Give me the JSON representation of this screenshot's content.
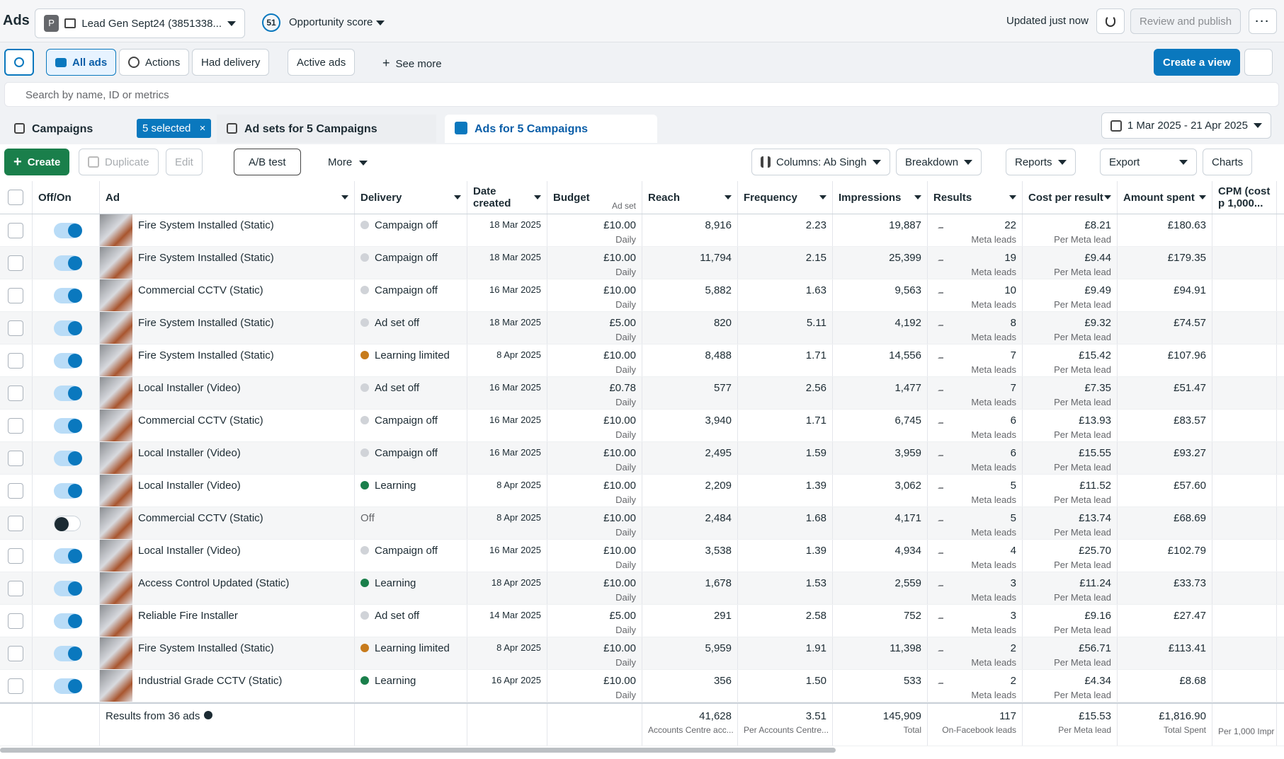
{
  "header": {
    "app": "Ads",
    "account_initial": "P",
    "campaign": "Lead Gen Sept24 (3851338...",
    "score": "51",
    "score_label": "Opportunity score",
    "updated": "Updated just now",
    "publish": "Review and publish"
  },
  "filters": {
    "items": [
      "All ads",
      "Actions",
      "Had delivery",
      "Active ads",
      "See more"
    ],
    "create_view": "Create a view",
    "search_placeholder": "Search by name, ID or metrics"
  },
  "tabs": {
    "campaigns": "Campaigns",
    "selected": "5 selected",
    "ad_sets": "Ad sets for 5 Campaigns",
    "ads": "Ads for 5 Campaigns",
    "date_range": "1 Mar 2025 - 21 Apr 2025"
  },
  "toolbar": {
    "create": "Create",
    "duplicate": "Duplicate",
    "edit": "Edit",
    "ab_test": "A/B test",
    "more": "More",
    "columns": "Columns: Ab Singh",
    "breakdown": "Breakdown",
    "reports": "Reports",
    "export": "Export",
    "charts": "Charts"
  },
  "table": {
    "columns": [
      "Off/On",
      "Ad",
      "Delivery",
      "Date created",
      "Budget",
      "Reach",
      "Frequency",
      "Impressions",
      "Results",
      "Cost per result",
      "Amount spent",
      "CPM (cost p 1,000..."
    ],
    "budget_note": "Ad set",
    "rows": [
      {
        "on": true,
        "ad": "Fire System Installed (Static)",
        "delivery": "Campaign off",
        "dot": "#d0d3d8",
        "date": "18 Mar 2025",
        "budget": "£10.00",
        "budget_period": "Daily",
        "reach": "8,916",
        "frequency": "2.23",
        "impressions": "19,887",
        "results": "22",
        "result_type": "Meta leads",
        "cost_per_result": "£8.21",
        "cost_type": "Per Meta lead",
        "amount_spent": "£180.63"
      },
      {
        "on": true,
        "ad": "Fire System Installed (Static)",
        "delivery": "Campaign off",
        "dot": "#d0d3d8",
        "date": "18 Mar 2025",
        "budget": "£10.00",
        "budget_period": "Daily",
        "reach": "11,794",
        "frequency": "2.15",
        "impressions": "25,399",
        "results": "19",
        "result_type": "Meta leads",
        "cost_per_result": "£9.44",
        "cost_type": "Per Meta lead",
        "amount_spent": "£179.35"
      },
      {
        "on": true,
        "ad": "Commercial CCTV (Static)",
        "delivery": "Campaign off",
        "dot": "#d0d3d8",
        "date": "16 Mar 2025",
        "budget": "£10.00",
        "budget_period": "Daily",
        "reach": "5,882",
        "frequency": "1.63",
        "impressions": "9,563",
        "results": "10",
        "result_type": "Meta leads",
        "cost_per_result": "£9.49",
        "cost_type": "Per Meta lead",
        "amount_spent": "£94.91"
      },
      {
        "on": true,
        "ad": "Fire System Installed (Static)",
        "delivery": "Ad set off",
        "dot": "#d0d3d8",
        "date": "18 Mar 2025",
        "budget": "£5.00",
        "budget_period": "Daily",
        "reach": "820",
        "frequency": "5.11",
        "impressions": "4,192",
        "results": "8",
        "result_type": "Meta leads",
        "cost_per_result": "£9.32",
        "cost_type": "Per Meta lead",
        "amount_spent": "£74.57"
      },
      {
        "on": true,
        "ad": "Fire System Installed (Static)",
        "delivery": "Learning limited",
        "dot": "#c77b1c",
        "date": "8 Apr 2025",
        "budget": "£10.00",
        "budget_period": "Daily",
        "reach": "8,488",
        "frequency": "1.71",
        "impressions": "14,556",
        "results": "7",
        "result_type": "Meta leads",
        "cost_per_result": "£15.42",
        "cost_type": "Per Meta lead",
        "amount_spent": "£107.96"
      },
      {
        "on": true,
        "ad": "Local Installer (Video)",
        "delivery": "Ad set off",
        "dot": "#d0d3d8",
        "date": "16 Mar 2025",
        "budget": "£0.78",
        "budget_period": "Daily",
        "reach": "577",
        "frequency": "2.56",
        "impressions": "1,477",
        "results": "7",
        "result_type": "Meta leads",
        "cost_per_result": "£7.35",
        "cost_type": "Per Meta lead",
        "amount_spent": "£51.47"
      },
      {
        "on": true,
        "ad": "Commercial CCTV (Static)",
        "delivery": "Campaign off",
        "dot": "#d0d3d8",
        "date": "16 Mar 2025",
        "budget": "£10.00",
        "budget_period": "Daily",
        "reach": "3,940",
        "frequency": "1.71",
        "impressions": "6,745",
        "results": "6",
        "result_type": "Meta leads",
        "cost_per_result": "£13.93",
        "cost_type": "Per Meta lead",
        "amount_spent": "£83.57"
      },
      {
        "on": true,
        "ad": "Local Installer (Video)",
        "delivery": "Campaign off",
        "dot": "#d0d3d8",
        "date": "16 Mar 2025",
        "budget": "£10.00",
        "budget_period": "Daily",
        "reach": "2,495",
        "frequency": "1.59",
        "impressions": "3,959",
        "results": "6",
        "result_type": "Meta leads",
        "cost_per_result": "£15.55",
        "cost_type": "Per Meta lead",
        "amount_spent": "£93.27"
      },
      {
        "on": true,
        "ad": "Local Installer (Video)",
        "delivery": "Learning",
        "dot": "#1a7f4b",
        "date": "8 Apr 2025",
        "budget": "£10.00",
        "budget_period": "Daily",
        "reach": "2,209",
        "frequency": "1.39",
        "impressions": "3,062",
        "results": "5",
        "result_type": "Meta leads",
        "cost_per_result": "£11.52",
        "cost_type": "Per Meta lead",
        "amount_spent": "£57.60"
      },
      {
        "on": false,
        "ad": "Commercial CCTV (Static)",
        "delivery": "Off",
        "dot": null,
        "date": "8 Apr 2025",
        "budget": "£10.00",
        "budget_period": "Daily",
        "reach": "2,484",
        "frequency": "1.68",
        "impressions": "4,171",
        "results": "5",
        "result_type": "Meta leads",
        "cost_per_result": "£13.74",
        "cost_type": "Per Meta lead",
        "amount_spent": "£68.69"
      },
      {
        "on": true,
        "ad": "Local Installer (Video)",
        "delivery": "Campaign off",
        "dot": "#d0d3d8",
        "date": "16 Mar 2025",
        "budget": "£10.00",
        "budget_period": "Daily",
        "reach": "3,538",
        "frequency": "1.39",
        "impressions": "4,934",
        "results": "4",
        "result_type": "Meta leads",
        "cost_per_result": "£25.70",
        "cost_type": "Per Meta lead",
        "amount_spent": "£102.79"
      },
      {
        "on": true,
        "ad": "Access Control Updated (Static)",
        "delivery": "Learning",
        "dot": "#1a7f4b",
        "date": "18 Apr 2025",
        "budget": "£10.00",
        "budget_period": "Daily",
        "reach": "1,678",
        "frequency": "1.53",
        "impressions": "2,559",
        "results": "3",
        "result_type": "Meta leads",
        "cost_per_result": "£11.24",
        "cost_type": "Per Meta lead",
        "amount_spent": "£33.73"
      },
      {
        "on": true,
        "ad": "Reliable Fire Installer",
        "delivery": "Ad set off",
        "dot": "#d0d3d8",
        "date": "14 Mar 2025",
        "budget": "£5.00",
        "budget_period": "Daily",
        "reach": "291",
        "frequency": "2.58",
        "impressions": "752",
        "results": "3",
        "result_type": "Meta leads",
        "cost_per_result": "£9.16",
        "cost_type": "Per Meta lead",
        "amount_spent": "£27.47"
      },
      {
        "on": true,
        "ad": "Fire System Installed (Static)",
        "delivery": "Learning limited",
        "dot": "#c77b1c",
        "date": "8 Apr 2025",
        "budget": "£10.00",
        "budget_period": "Daily",
        "reach": "5,959",
        "frequency": "1.91",
        "impressions": "11,398",
        "results": "2",
        "result_type": "Meta leads",
        "cost_per_result": "£56.71",
        "cost_type": "Per Meta lead",
        "amount_spent": "£113.41"
      },
      {
        "on": true,
        "ad": "Industrial Grade CCTV (Static)",
        "delivery": "Learning",
        "dot": "#1a7f4b",
        "date": "16 Apr 2025",
        "budget": "£10.00",
        "budget_period": "Daily",
        "reach": "356",
        "frequency": "1.50",
        "impressions": "533",
        "results": "2",
        "result_type": "Meta leads",
        "cost_per_result": "£4.34",
        "cost_type": "Per Meta lead",
        "amount_spent": "£8.68"
      }
    ],
    "summary": {
      "label": "Results from 36 ads",
      "reach": "41,628",
      "reach_note": "Accounts Centre acc...",
      "frequency": "3.51",
      "frequency_note": "Per Accounts Centre...",
      "impressions": "145,909",
      "impressions_note": "Total",
      "results": "117",
      "results_note": "On-Facebook leads",
      "cost_per_result": "£15.53",
      "cost_note": "Per Meta lead",
      "amount_spent": "£1,816.90",
      "amount_note": "Total Spent",
      "cpm_note": "Per 1,000 Impr"
    }
  }
}
